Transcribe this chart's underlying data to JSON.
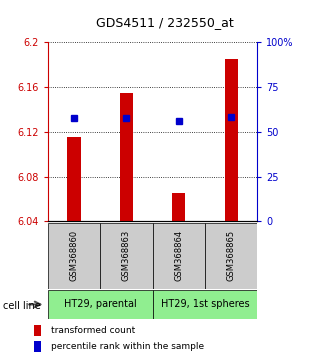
{
  "title": "GDS4511 / 232550_at",
  "samples": [
    "GSM368860",
    "GSM368863",
    "GSM368864",
    "GSM368865"
  ],
  "red_values": [
    6.115,
    6.155,
    6.065,
    6.185
  ],
  "blue_values": [
    6.132,
    6.132,
    6.13,
    6.133
  ],
  "ymin": 6.04,
  "ymax": 6.2,
  "y2min": 0,
  "y2max": 100,
  "yticks": [
    6.04,
    6.08,
    6.12,
    6.16,
    6.2
  ],
  "ytick_labels": [
    "6.04",
    "6.08",
    "6.12",
    "6.16",
    "6.2"
  ],
  "y2ticks": [
    0,
    25,
    50,
    75,
    100
  ],
  "y2tick_labels": [
    "0",
    "25",
    "50",
    "75",
    "100%"
  ],
  "cell_line_label": "cell line",
  "legend_red": "transformed count",
  "legend_blue": "percentile rank within the sample",
  "bar_color": "#cc0000",
  "blue_color": "#0000cc",
  "sample_box_color": "#cccccc",
  "group_box_color": "#90EE90",
  "bar_base": 6.04,
  "bar_width": 0.25
}
